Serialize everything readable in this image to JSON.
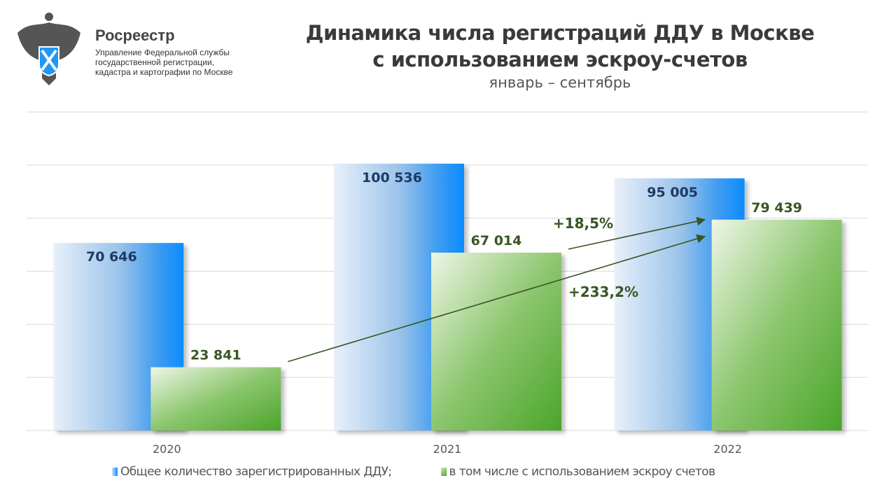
{
  "header": {
    "brand": "Росреестр",
    "org_lines": [
      "Управление Федеральной службы",
      "государственной регистрации,",
      "кадастра и картографии по Москве"
    ],
    "title_lines": [
      "Динамика числа регистраций ДДУ в Москве",
      "с использованием эскроу-счетов"
    ],
    "subtitle": "январь – сентябрь"
  },
  "chart_data": {
    "type": "bar",
    "title": "Динамика числа регистраций ДДУ в Москве с использованием эскроу-счетов",
    "subtitle": "январь – сентябрь",
    "categories": [
      "2020",
      "2021",
      "2022"
    ],
    "series": [
      {
        "name": "Общее количество зарегистрированных ДДУ;",
        "values": [
          70646,
          100536,
          95005
        ],
        "labels": [
          "70 646",
          "100 536",
          "95 005"
        ],
        "color": "#0a8cff"
      },
      {
        "name": "в том числе с использованием эскроу счетов",
        "values": [
          23841,
          67014,
          79439
        ],
        "labels": [
          "23 841",
          "67 014",
          "79 439"
        ],
        "color": "#4ea72e"
      }
    ],
    "ylim": [
      0,
      120000
    ],
    "grid": true,
    "yaxis_labels_shown": false,
    "legend_placement": "bottom",
    "annotations": [
      {
        "text": "+18,5%",
        "series": 1,
        "from": 1,
        "to": 2
      },
      {
        "text": "+233,2%",
        "series": 1,
        "from": 0,
        "to": 2
      }
    ],
    "annotation_color": "#375623"
  }
}
